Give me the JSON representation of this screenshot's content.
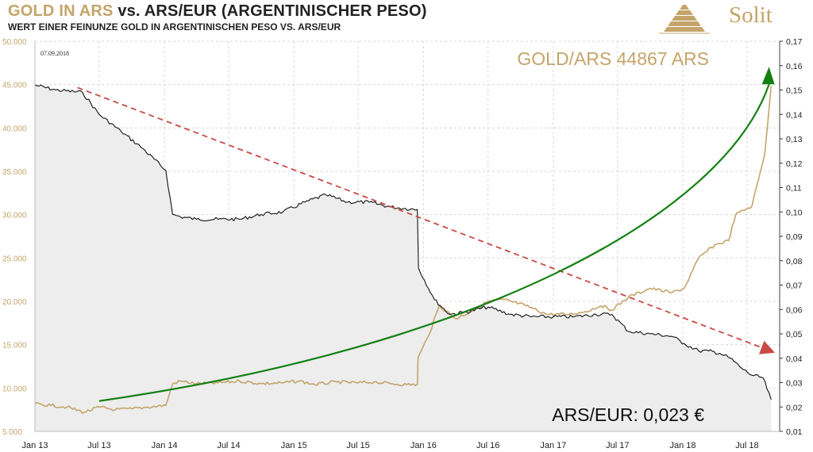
{
  "header": {
    "title_gold": "GOLD IN ARS",
    "title_rest": "vs. ARS/EUR (ARGENTINISCHER PESO)",
    "subtitle": "WERT EINER FEINUNZE GOLD IN ARGENTINISCHEN PESO VS. ARS/EUR",
    "logo_text": "Solit"
  },
  "colors": {
    "gold": "#c4a46a",
    "black_line": "#111111",
    "fill": "#ededed",
    "trend_down": "#c94a45",
    "trend_up": "#128012",
    "grid": "#d8d8d8"
  },
  "chart_data": {
    "type": "line",
    "date_label": "07.09.2018",
    "annotation_gold": "GOLD/ARS 44867 ARS",
    "annotation_eur": "ARS/EUR: 0,023 €",
    "x_ticks": [
      "Jan 13",
      "Jul 13",
      "Jan 14",
      "Jul 14",
      "Jan 15",
      "Jul 15",
      "Jan 16",
      "Jul 16",
      "Jan 17",
      "Jul 17",
      "Jan 18",
      "Jul 18"
    ],
    "x_range": [
      "2013-01-01",
      "2018-10-01"
    ],
    "y_left": {
      "min": 5000,
      "max": 50000,
      "ticks": [
        "5.000",
        "10.000",
        "15.000",
        "20.000",
        "25.000",
        "30.000",
        "35.000",
        "40.000",
        "45.000",
        "50.000"
      ],
      "tick_values": [
        5000,
        10000,
        15000,
        20000,
        25000,
        30000,
        35000,
        40000,
        45000,
        50000
      ]
    },
    "y_right": {
      "min": 0.01,
      "max": 0.17,
      "ticks": [
        "0,01",
        "0,02",
        "0,03",
        "0,04",
        "0,05",
        "0,06",
        "0,07",
        "0,08",
        "0,09",
        "0,10",
        "0,11",
        "0,12",
        "0,13",
        "0,14",
        "0,15",
        "0,16",
        "0,17"
      ],
      "tick_values": [
        0.01,
        0.02,
        0.03,
        0.04,
        0.05,
        0.06,
        0.07,
        0.08,
        0.09,
        0.1,
        0.11,
        0.12,
        0.13,
        0.14,
        0.15,
        0.16,
        0.17
      ]
    },
    "series": [
      {
        "axis": "left",
        "x": [
          "2013-01-01",
          "2013-02-15",
          "2013-04-01",
          "2013-05-20",
          "2013-07-01",
          "2013-08-15",
          "2013-10-01",
          "2013-11-15",
          "2014-01-05",
          "2014-01-24",
          "2014-02-15",
          "2014-04-01",
          "2014-06-01",
          "2014-08-01",
          "2014-10-01",
          "2014-12-01",
          "2015-01-15",
          "2015-03-01",
          "2015-05-01",
          "2015-07-01",
          "2015-08-15",
          "2015-10-01",
          "2015-11-15",
          "2015-12-15",
          "2015-12-17",
          "2016-01-15",
          "2016-02-15",
          "2016-04-01",
          "2016-06-01",
          "2016-07-01",
          "2016-08-15",
          "2016-10-15",
          "2016-12-15",
          "2017-02-15",
          "2017-04-01",
          "2017-05-15",
          "2017-06-15",
          "2017-08-01",
          "2017-10-01",
          "2017-12-01",
          "2018-01-05",
          "2018-02-15",
          "2018-04-01",
          "2018-05-10",
          "2018-05-30",
          "2018-07-15",
          "2018-08-20",
          "2018-09-07"
        ],
        "y": [
          8200,
          8000,
          7800,
          7200,
          7800,
          7500,
          7600,
          7800,
          8000,
          10500,
          10800,
          10500,
          10600,
          10800,
          10500,
          10600,
          10800,
          10400,
          10700,
          10600,
          10700,
          10500,
          10400,
          10400,
          13500,
          16000,
          19500,
          18000,
          19200,
          20000,
          20200,
          19500,
          18500,
          18500,
          18800,
          19500,
          19000,
          20500,
          21500,
          21000,
          21500,
          25000,
          26500,
          27000,
          30000,
          31000,
          37000,
          44867
        ]
      },
      {
        "axis": "right",
        "x": [
          "2013-01-01",
          "2013-03-01",
          "2013-05-15",
          "2013-07-01",
          "2013-09-01",
          "2013-11-01",
          "2014-01-05",
          "2014-01-24",
          "2014-02-15",
          "2014-04-01",
          "2014-06-01",
          "2014-08-01",
          "2014-10-01",
          "2014-12-01",
          "2015-02-01",
          "2015-04-01",
          "2015-06-01",
          "2015-08-01",
          "2015-10-01",
          "2015-12-15",
          "2015-12-18",
          "2016-02-01",
          "2016-03-15",
          "2016-05-01",
          "2016-07-01",
          "2016-09-01",
          "2016-11-01",
          "2017-01-01",
          "2017-03-01",
          "2017-05-01",
          "2017-06-15",
          "2017-08-01",
          "2017-10-01",
          "2017-12-01",
          "2018-01-05",
          "2018-02-15",
          "2018-03-15",
          "2018-04-15",
          "2018-05-15",
          "2018-06-15",
          "2018-07-15",
          "2018-08-15",
          "2018-09-07"
        ],
        "y": [
          0.152,
          0.15,
          0.149,
          0.14,
          0.133,
          0.126,
          0.117,
          0.099,
          0.098,
          0.097,
          0.097,
          0.097,
          0.099,
          0.1,
          0.104,
          0.107,
          0.104,
          0.104,
          0.102,
          0.101,
          0.077,
          0.064,
          0.058,
          0.059,
          0.061,
          0.058,
          0.057,
          0.057,
          0.057,
          0.058,
          0.058,
          0.051,
          0.05,
          0.049,
          0.046,
          0.043,
          0.043,
          0.042,
          0.04,
          0.036,
          0.033,
          0.032,
          0.023
        ]
      }
    ],
    "trend_lines": [
      {
        "axis": "right",
        "x": [
          "2013-05-01",
          "2018-09-05"
        ],
        "y": [
          0.151,
          0.043
        ]
      },
      {
        "axis": "left",
        "x": [
          "2013-07-01",
          "2018-09-01"
        ],
        "y": [
          8500,
          46500
        ]
      }
    ]
  }
}
